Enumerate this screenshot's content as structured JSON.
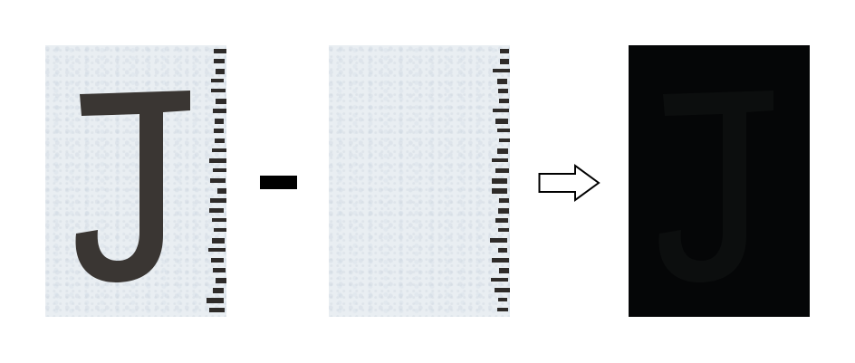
{
  "panels": {
    "left": {
      "glyph": "J",
      "paper_color": "#e9eef2",
      "ink_color": "#3a3633"
    },
    "middle": {
      "paper_color": "#e9eef2"
    },
    "right": {
      "fill_color": "#050607",
      "faint_glyph": "J"
    }
  },
  "operator_symbol": "minus",
  "result_symbol": "arrow-right-outline"
}
